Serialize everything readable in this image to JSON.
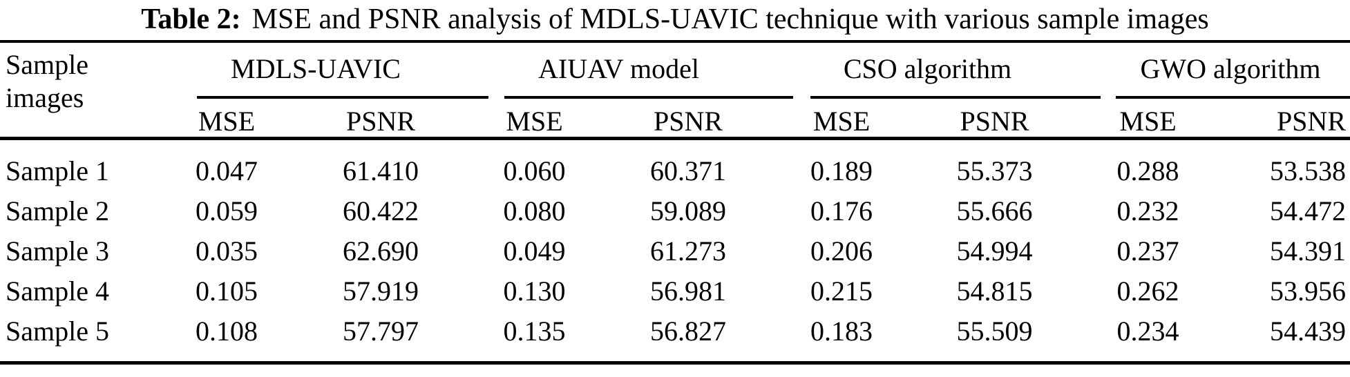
{
  "title": {
    "label": "Table 2:",
    "text": "MSE and PSNR analysis of MDLS-UAVIC technique with various sample images"
  },
  "colors": {
    "text": "#000000",
    "background": "#ffffff",
    "rule": "#000000"
  },
  "table": {
    "row_header": {
      "line1": "Sample",
      "line2": "images"
    },
    "groups": [
      "MDLS-UAVIC",
      "AIUAV model",
      "CSO algorithm",
      "GWO algorithm"
    ],
    "subheaders": [
      "MSE",
      "PSNR",
      "MSE",
      "PSNR",
      "MSE",
      "PSNR",
      "MSE",
      "PSNR"
    ],
    "rows": [
      {
        "label": "Sample 1",
        "values": [
          "0.047",
          "61.410",
          "0.060",
          "60.371",
          "0.189",
          "55.373",
          "0.288",
          "53.538"
        ]
      },
      {
        "label": "Sample 2",
        "values": [
          "0.059",
          "60.422",
          "0.080",
          "59.089",
          "0.176",
          "55.666",
          "0.232",
          "54.472"
        ]
      },
      {
        "label": "Sample 3",
        "values": [
          "0.035",
          "62.690",
          "0.049",
          "61.273",
          "0.206",
          "54.994",
          "0.237",
          "54.391"
        ]
      },
      {
        "label": "Sample 4",
        "values": [
          "0.105",
          "57.919",
          "0.130",
          "56.981",
          "0.215",
          "54.815",
          "0.262",
          "53.956"
        ]
      },
      {
        "label": "Sample 5",
        "values": [
          "0.108",
          "57.797",
          "0.135",
          "56.827",
          "0.183",
          "55.509",
          "0.234",
          "54.439"
        ]
      }
    ]
  }
}
